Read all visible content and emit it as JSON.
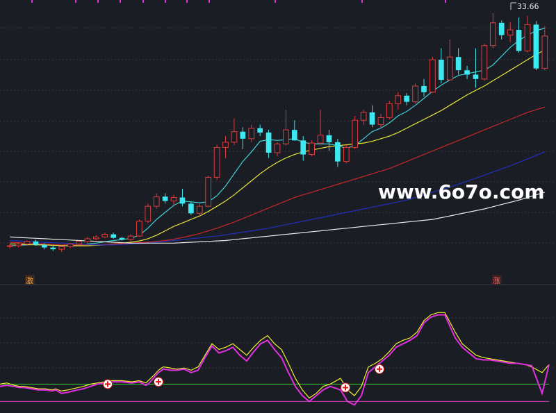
{
  "labels": {
    "high_value": "33.66",
    "watermark": "www.6o7o.com",
    "signal_start": "激",
    "signal_rise": "涨"
  },
  "colors": {
    "background": "#1b1d24",
    "up": "#e23b3b",
    "down": "#3ee8f0",
    "ma5": "#3fd1d8",
    "ma10": "#e6e63a",
    "ma20": "#c82828",
    "ma60": "#2030c0",
    "ma120": "#e8e8e8",
    "indicator_fast": "#f0f030",
    "indicator_slow": "#e030e0",
    "upper_line": "#2ed82e",
    "lower_line": "#d040d0"
  },
  "chart_data": [
    {
      "type": "candlestick",
      "title": "",
      "annotation": "33.66",
      "ylim": [
        5,
        36
      ],
      "series": [
        {
          "name": "ohlc",
          "values": [
            [
              8.0,
              8.2,
              7.7,
              8.0
            ],
            [
              8.0,
              8.4,
              7.8,
              8.2
            ],
            [
              8.2,
              8.6,
              8.0,
              8.5
            ],
            [
              8.5,
              8.7,
              8.0,
              8.1
            ],
            [
              8.1,
              8.3,
              7.6,
              7.8
            ],
            [
              7.8,
              8.0,
              7.4,
              7.6
            ],
            [
              7.6,
              8.0,
              7.3,
              7.9
            ],
            [
              7.9,
              8.3,
              7.7,
              8.2
            ],
            [
              8.2,
              8.6,
              8.0,
              8.5
            ],
            [
              8.5,
              9.0,
              8.3,
              8.8
            ],
            [
              8.8,
              9.2,
              8.6,
              9.0
            ],
            [
              9.0,
              9.5,
              8.9,
              9.3
            ],
            [
              9.3,
              9.5,
              8.8,
              8.9
            ],
            [
              8.9,
              9.0,
              8.6,
              8.7
            ],
            [
              8.7,
              9.3,
              8.5,
              9.1
            ],
            [
              9.1,
              11.0,
              9.0,
              10.8
            ],
            [
              10.8,
              12.8,
              10.6,
              12.5
            ],
            [
              12.5,
              14.0,
              12.2,
              13.6
            ],
            [
              13.6,
              14.0,
              12.8,
              13.1
            ],
            [
              13.1,
              13.8,
              12.6,
              13.5
            ],
            [
              13.5,
              14.5,
              12.5,
              12.8
            ],
            [
              12.8,
              13.0,
              11.5,
              11.7
            ],
            [
              11.7,
              12.8,
              11.4,
              12.5
            ],
            [
              12.5,
              16.0,
              12.4,
              15.8
            ],
            [
              15.8,
              19.5,
              15.5,
              19.2
            ],
            [
              19.2,
              20.5,
              18.0,
              19.8
            ],
            [
              19.8,
              22.5,
              19.5,
              21.0
            ],
            [
              21.0,
              21.5,
              19.0,
              20.2
            ],
            [
              20.2,
              21.8,
              19.8,
              21.4
            ],
            [
              21.4,
              21.8,
              20.5,
              20.9
            ],
            [
              20.9,
              21.2,
              18.0,
              18.6
            ],
            [
              18.6,
              19.8,
              18.2,
              19.6
            ],
            [
              19.6,
              23.5,
              19.4,
              21.2
            ],
            [
              21.2,
              22.3,
              20.0,
              20.0
            ],
            [
              20.0,
              20.5,
              17.7,
              18.4
            ],
            [
              18.4,
              20.0,
              18.2,
              19.7
            ],
            [
              19.7,
              23.5,
              19.5,
              20.6
            ],
            [
              20.6,
              21.2,
              18.8,
              19.8
            ],
            [
              19.8,
              20.2,
              17.0,
              17.6
            ],
            [
              17.6,
              19.5,
              17.4,
              19.2
            ],
            [
              19.2,
              22.8,
              19.0,
              22.3
            ],
            [
              22.3,
              23.5,
              21.8,
              23.2
            ],
            [
              23.2,
              24.0,
              21.5,
              21.8
            ],
            [
              21.8,
              23.0,
              21.4,
              22.6
            ],
            [
              22.6,
              24.5,
              22.4,
              24.2
            ],
            [
              24.2,
              25.5,
              23.5,
              25.1
            ],
            [
              25.1,
              25.4,
              24.0,
              24.4
            ],
            [
              24.4,
              26.5,
              24.2,
              26.2
            ],
            [
              26.2,
              27.0,
              25.0,
              25.5
            ],
            [
              25.5,
              29.5,
              25.4,
              29.2
            ],
            [
              29.2,
              30.5,
              26.5,
              26.9
            ],
            [
              26.9,
              31.5,
              26.8,
              29.5
            ],
            [
              29.5,
              30.5,
              27.5,
              28.0
            ],
            [
              28.0,
              28.5,
              27.0,
              27.5
            ],
            [
              27.5,
              30.5,
              26.0,
              27.0
            ],
            [
              27.0,
              31.0,
              26.8,
              30.8
            ],
            [
              30.8,
              34.5,
              30.5,
              33.4
            ],
            [
              33.4,
              33.66,
              31.5,
              32.0
            ],
            [
              32.0,
              33.5,
              31.2,
              32.6
            ],
            [
              32.6,
              34.0,
              30.0,
              30.2
            ],
            [
              30.2,
              34.2,
              30.0,
              33.2
            ],
            [
              33.2,
              33.6,
              28.0,
              28.2
            ],
            [
              28.2,
              33.0,
              28.0,
              31.9
            ]
          ]
        },
        {
          "name": "ma5",
          "values": [
            8.0,
            8.05,
            8.1,
            8.15,
            8.1,
            8.05,
            8.0,
            8.0,
            8.05,
            8.2,
            8.3,
            8.45,
            8.6,
            8.7,
            8.85,
            9.2,
            10.0,
            11.0,
            11.8,
            12.6,
            13.1,
            13.0,
            12.9,
            13.0,
            13.7,
            14.8,
            16.2,
            17.6,
            18.7,
            19.9,
            20.1,
            20.0,
            20.1,
            20.2,
            19.8,
            19.6,
            19.6,
            19.6,
            19.4,
            19.1,
            19.4,
            20.2,
            21.0,
            21.4,
            22.0,
            22.8,
            23.3,
            24.0,
            24.8,
            25.6,
            26.3,
            26.9,
            27.4,
            27.6,
            27.8,
            28.0,
            28.6,
            29.6,
            30.6,
            31.4,
            32.0,
            32.5,
            32.8
          ]
        },
        {
          "name": "ma10",
          "values": [
            8.2,
            8.2,
            8.15,
            8.1,
            8.1,
            8.05,
            8.05,
            8.0,
            8.0,
            8.0,
            8.05,
            8.1,
            8.2,
            8.3,
            8.4,
            8.55,
            8.8,
            9.2,
            9.7,
            10.2,
            10.6,
            11.0,
            11.4,
            11.9,
            12.5,
            13.1,
            13.8,
            14.6,
            15.4,
            16.2,
            16.9,
            17.5,
            18.0,
            18.4,
            18.7,
            18.9,
            19.1,
            19.3,
            19.4,
            19.5,
            19.6,
            19.7,
            19.9,
            20.2,
            20.5,
            20.9,
            21.4,
            21.9,
            22.4,
            22.9,
            23.4,
            24.0,
            24.6,
            25.2,
            25.7,
            26.2,
            26.8,
            27.4,
            28.0,
            28.6,
            29.2,
            29.8,
            30.3
          ]
        },
        {
          "name": "ma20",
          "values": [
            8.4,
            8.35,
            8.3,
            8.25,
            8.2,
            8.15,
            8.1,
            8.1,
            8.1,
            8.1,
            8.1,
            8.15,
            8.2,
            8.25,
            8.3,
            8.35,
            8.4,
            8.5,
            8.6,
            8.75,
            8.95,
            9.15,
            9.4,
            9.7,
            10.0,
            10.35,
            10.7,
            11.1,
            11.5,
            11.9,
            12.3,
            12.7,
            13.1,
            13.5,
            13.8,
            14.1,
            14.4,
            14.7,
            15.0,
            15.3,
            15.6,
            15.9,
            16.2,
            16.5,
            16.8,
            17.2,
            17.6,
            18.0,
            18.4,
            18.8,
            19.2,
            19.6,
            20.0,
            20.4,
            20.8,
            21.2,
            21.6,
            22.0,
            22.4,
            22.8,
            23.2,
            23.5,
            23.8
          ]
        },
        {
          "name": "ma60",
          "values": [
            8.6,
            8.55,
            8.5,
            8.45,
            8.4,
            8.35,
            8.3,
            8.25,
            8.2,
            8.15,
            8.1,
            8.1,
            8.1,
            8.15,
            8.2,
            8.25,
            8.3,
            8.4,
            8.5,
            8.6,
            8.7,
            8.8,
            8.9,
            9.0,
            9.1,
            9.25,
            9.4,
            9.55,
            9.7,
            9.85,
            10.0,
            10.2,
            10.4,
            10.6,
            10.8,
            11.0,
            11.2,
            11.4,
            11.6,
            11.8,
            12.0,
            12.2,
            12.4,
            12.6,
            12.8,
            13.0,
            13.2,
            13.5,
            13.8,
            14.1,
            14.4,
            14.7,
            15.0,
            15.35,
            15.7,
            16.05,
            16.4,
            16.75,
            17.1,
            17.5,
            17.9,
            18.3,
            18.7
          ]
        },
        {
          "name": "ma120",
          "values": [
            9.0,
            8.95,
            8.9,
            8.85,
            8.8,
            8.75,
            8.7,
            8.65,
            8.6,
            8.55,
            8.5,
            8.45,
            8.4,
            8.35,
            8.3,
            8.3,
            8.3,
            8.3,
            8.3,
            8.3,
            8.35,
            8.4,
            8.45,
            8.5,
            8.55,
            8.6,
            8.7,
            8.8,
            8.9,
            9.0,
            9.1,
            9.2,
            9.3,
            9.4,
            9.5,
            9.6,
            9.7,
            9.8,
            9.9,
            10.0,
            10.1,
            10.2,
            10.3,
            10.4,
            10.5,
            10.6,
            10.7,
            10.8,
            10.9,
            11.0,
            11.2,
            11.4,
            11.6,
            11.8,
            12.0,
            12.2,
            12.45,
            12.7,
            12.95,
            13.2,
            13.5,
            13.8,
            14.1
          ]
        }
      ]
    },
    {
      "type": "line",
      "title": "",
      "ylim": [
        -5,
        105
      ],
      "reference_lines": [
        20,
        5
      ],
      "x": [
        0,
        10,
        20,
        28,
        35,
        45,
        55,
        65,
        75,
        80,
        88,
        98,
        105,
        112,
        120,
        130,
        140,
        150,
        160,
        175,
        190,
        200,
        210,
        215,
        222,
        228,
        235,
        245,
        255,
        265,
        275,
        285,
        295,
        305,
        315,
        325,
        335,
        345,
        355,
        365,
        375,
        385,
        395,
        405,
        415,
        425,
        435,
        445,
        455,
        465,
        475,
        490,
        500,
        510,
        520,
        530,
        540,
        550,
        560,
        570,
        580,
        590,
        600,
        610,
        620,
        630,
        640,
        655,
        665,
        675,
        685,
        695,
        705,
        715,
        725,
        735,
        745,
        755,
        765,
        780,
        790
      ],
      "series": [
        {
          "name": "fast",
          "values": [
            20,
            21,
            19,
            18,
            18,
            17,
            16,
            16,
            15,
            16,
            14,
            15,
            16,
            17,
            18,
            20,
            21,
            22,
            23,
            23,
            22,
            23,
            21,
            24,
            28,
            32,
            35,
            34,
            33,
            34,
            32,
            35,
            45,
            55,
            50,
            52,
            55,
            50,
            45,
            52,
            58,
            62,
            55,
            50,
            38,
            25,
            15,
            8,
            12,
            18,
            20,
            25,
            15,
            10,
            18,
            35,
            38,
            42,
            48,
            55,
            58,
            60,
            65,
            75,
            80,
            82,
            82,
            65,
            55,
            50,
            45,
            43,
            42,
            41,
            40,
            39,
            38,
            37,
            35,
            30,
            37
          ]
        },
        {
          "name": "slow",
          "values": [
            18,
            19,
            18,
            17,
            17,
            16,
            15,
            15,
            14,
            15,
            12,
            13,
            14,
            15,
            16,
            18,
            20,
            21,
            22,
            22,
            21,
            22,
            19,
            21,
            26,
            30,
            33,
            32,
            32,
            33,
            30,
            32,
            43,
            53,
            47,
            49,
            52,
            45,
            40,
            48,
            55,
            58,
            50,
            43,
            30,
            18,
            10,
            5,
            10,
            15,
            18,
            15,
            5,
            2,
            10,
            30,
            35,
            40,
            45,
            52,
            55,
            58,
            62,
            73,
            78,
            80,
            80,
            60,
            52,
            47,
            42,
            41,
            41,
            40,
            39,
            38,
            38,
            37,
            36,
            12,
            37
          ]
        }
      ]
    }
  ]
}
